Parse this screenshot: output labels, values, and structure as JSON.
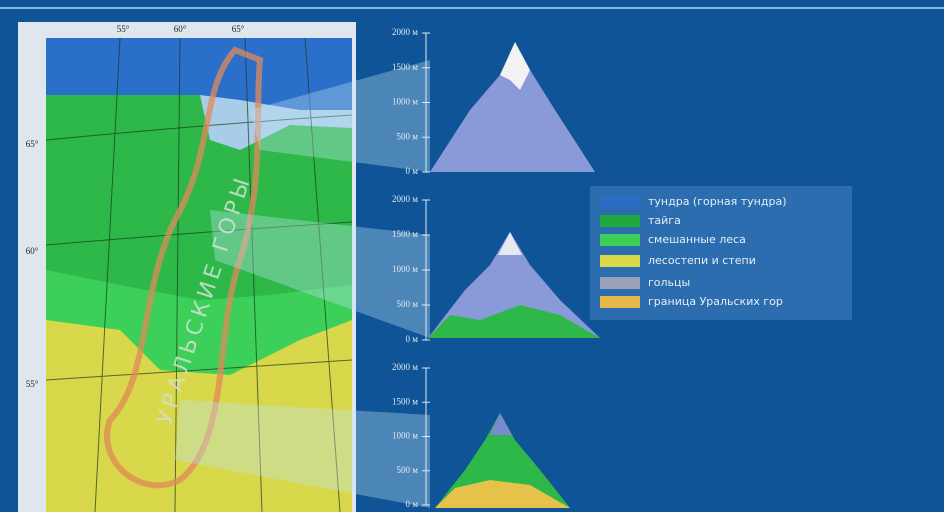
{
  "map": {
    "longitudes": [
      "55°",
      "60°",
      "65°"
    ],
    "latitudes": [
      "65°",
      "60°",
      "55°"
    ],
    "mountains_label": "УРАЛЬСКИЕ ГОРЫ"
  },
  "panels": [
    {
      "scale": [
        "2000 м",
        "1500 м",
        "1000 м",
        "500 м",
        "0 м"
      ]
    },
    {
      "scale": [
        "2000 м",
        "1500 м",
        "1000 м",
        "500 м",
        "0 м"
      ]
    },
    {
      "scale": [
        "2000 м",
        "1500 м",
        "1000 м",
        "500 м",
        "0 м"
      ]
    }
  ],
  "legend": {
    "items": [
      "тундра (горная тундра)",
      "тайга",
      "смешанные леса",
      "лесостепи и степи",
      "гольцы",
      "граница Уральских гор"
    ]
  }
}
